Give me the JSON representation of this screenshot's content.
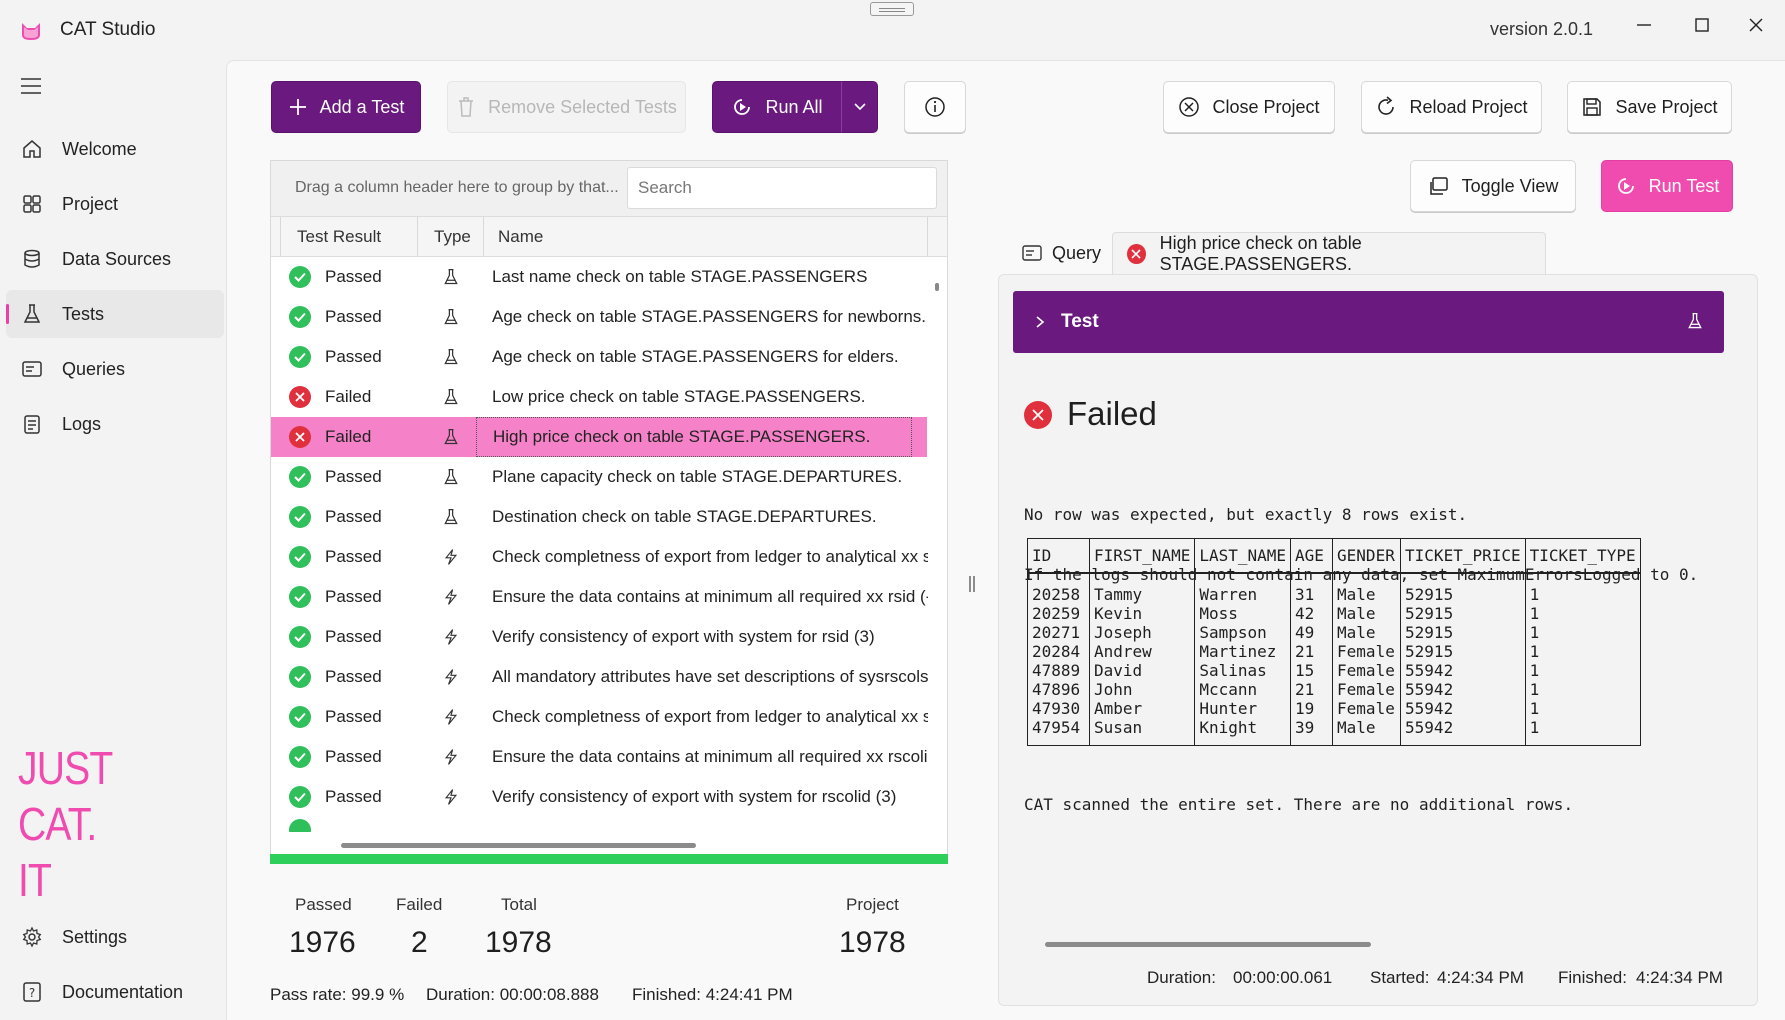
{
  "app": {
    "title": "CAT Studio",
    "version": "version 2.0.1"
  },
  "sidebar": {
    "items": [
      {
        "label": "Welcome",
        "icon": "home-icon"
      },
      {
        "label": "Project",
        "icon": "grid-icon"
      },
      {
        "label": "Data Sources",
        "icon": "database-icon"
      },
      {
        "label": "Tests",
        "icon": "flask-icon"
      },
      {
        "label": "Queries",
        "icon": "query-icon"
      },
      {
        "label": "Logs",
        "icon": "log-icon"
      }
    ],
    "active": "Tests",
    "tagline": [
      "JUST",
      "CAT.",
      "IT"
    ],
    "bottom": [
      {
        "label": "Settings",
        "icon": "gear-icon"
      },
      {
        "label": "Documentation",
        "icon": "documentation-icon"
      }
    ]
  },
  "toolbar": {
    "add_test": "Add a Test",
    "remove_selected": "Remove Selected Tests",
    "run_all": "Run All",
    "close_project": "Close Project",
    "reload_project": "Reload Project",
    "save_project": "Save Project",
    "toggle_view": "Toggle View",
    "run_test": "Run Test"
  },
  "grid": {
    "group_hint": "Drag a column header here to group by that...",
    "search_placeholder": "Search",
    "columns": [
      "Test Result",
      "Type",
      "Name"
    ],
    "rows": [
      {
        "result": "Passed",
        "type": "flask",
        "name": "Last name check on table STAGE.PASSENGERS"
      },
      {
        "result": "Passed",
        "type": "flask",
        "name": "Age check on table STAGE.PASSENGERS for newborns."
      },
      {
        "result": "Passed",
        "type": "flask",
        "name": "Age check on table STAGE.PASSENGERS for elders."
      },
      {
        "result": "Failed",
        "type": "flask",
        "name": "Low price check on table STAGE.PASSENGERS."
      },
      {
        "result": "Failed",
        "type": "flask",
        "name": "High price check on table STAGE.PASSENGERS.",
        "selected": true
      },
      {
        "result": "Passed",
        "type": "flask",
        "name": "Plane capacity check on table STAGE.DEPARTURES."
      },
      {
        "result": "Passed",
        "type": "flask",
        "name": "Destination check on table STAGE.DEPARTURES."
      },
      {
        "result": "Passed",
        "type": "bolt",
        "name": "Check completness of export from ledger to analytical xx sy"
      },
      {
        "result": "Passed",
        "type": "bolt",
        "name": "Ensure the data contains at minimum all required xx rsid  (-"
      },
      {
        "result": "Passed",
        "type": "bolt",
        "name": "Verify consistency of export with system for rsid  (3)"
      },
      {
        "result": "Passed",
        "type": "bolt",
        "name": "All mandatory attributes have set descriptions of sysrscols"
      },
      {
        "result": "Passed",
        "type": "bolt",
        "name": "Check completness of export from ledger to analytical xx sy"
      },
      {
        "result": "Passed",
        "type": "bolt",
        "name": "Ensure the data contains at minimum all required xx rscolic"
      },
      {
        "result": "Passed",
        "type": "bolt",
        "name": "Verify consistency of export with system for rscolid  (3)"
      }
    ]
  },
  "stats": {
    "passed_label": "Passed",
    "passed": "1976",
    "failed_label": "Failed",
    "failed": "2",
    "total_label": "Total",
    "total": "1978",
    "project_label": "Project",
    "project": "1978",
    "progress_fraction": 1.0,
    "pass_rate": "Pass rate: 99.9 %",
    "duration": "Duration: 00:00:08.888",
    "finished": "Finished: 4:24:41 PM"
  },
  "detail": {
    "tabs": [
      {
        "label": "Query",
        "icon": "query-icon"
      },
      {
        "label": "High price check on table STAGE.PASSENGERS.",
        "icon": "failed-icon"
      }
    ],
    "section_title": "Test",
    "status": "Failed",
    "message_lines": [
      "No row was expected, but exactly 8 rows exist.",
      "If the logs should not contain any data, set MaximumErrorsLogged to 0."
    ],
    "table": {
      "columns": [
        "ID",
        "FIRST_NAME",
        "LAST_NAME",
        "AGE",
        "GENDER",
        "TICKET_PRICE",
        "TICKET_TYPE"
      ],
      "rows": [
        [
          "20258",
          "Tammy",
          "Warren",
          "31",
          "Male",
          "52915",
          "1"
        ],
        [
          "20259",
          "Kevin",
          "Moss",
          "42",
          "Male",
          "52915",
          "1"
        ],
        [
          "20271",
          "Joseph",
          "Sampson",
          "49",
          "Male",
          "52915",
          "1"
        ],
        [
          "20284",
          "Andrew",
          "Martinez",
          "21",
          "Female",
          "52915",
          "1"
        ],
        [
          "47889",
          "David",
          "Salinas",
          "15",
          "Female",
          "55942",
          "1"
        ],
        [
          "47896",
          "John",
          "Mccann",
          "21",
          "Female",
          "55942",
          "1"
        ],
        [
          "47930",
          "Amber",
          "Hunter",
          "19",
          "Female",
          "55942",
          "1"
        ],
        [
          "47954",
          "Susan",
          "Knight",
          "39",
          "Male",
          "55942",
          "1"
        ]
      ]
    },
    "scan_note": "CAT scanned the entire set. There are no additional rows.",
    "footer": {
      "duration_label": "Duration:",
      "duration": "00:00:00.061",
      "started_label": "Started:",
      "started": "4:24:34 PM",
      "finished_label": "Finished:",
      "finished": "4:24:34 PM"
    }
  },
  "colors": {
    "brand_purple": "#6a1a7f",
    "accent_pink": "#f04cb0",
    "pass_green": "#2fbf5b",
    "fail_red": "#e0303e"
  }
}
